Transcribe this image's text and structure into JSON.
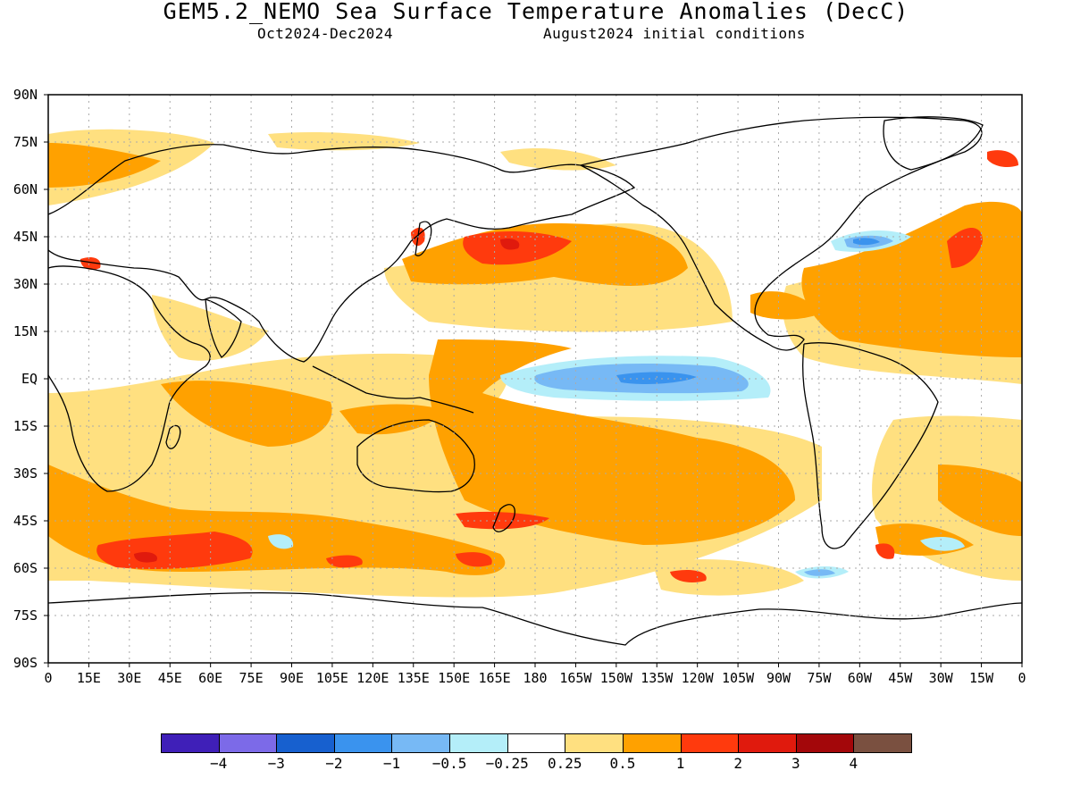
{
  "title": "GEM5.2_NEMO Sea Surface Temperature Anomalies (DecC)",
  "subtitle_left": "Oct2024-Dec2024",
  "subtitle_right": "August2024 initial conditions",
  "lat_labels": [
    "90N",
    "75N",
    "60N",
    "45N",
    "30N",
    "15N",
    "EQ",
    "15S",
    "30S",
    "45S",
    "60S",
    "75S",
    "90S"
  ],
  "lon_labels": [
    "0",
    "15E",
    "30E",
    "45E",
    "60E",
    "75E",
    "90E",
    "105E",
    "120E",
    "135E",
    "150E",
    "165E",
    "180",
    "165W",
    "150W",
    "135W",
    "120W",
    "105W",
    "90W",
    "75W",
    "60W",
    "45W",
    "30W",
    "15W",
    "0"
  ],
  "colorbar": {
    "colors": [
      "#3f1fb8",
      "#7c6ae8",
      "#1760cf",
      "#3a93ee",
      "#77b9f5",
      "#b4eef9",
      "#ffffff",
      "#ffe080",
      "#ffa100",
      "#ff3a0d",
      "#e01a0d",
      "#a3070a",
      "#7a5040"
    ],
    "labels": [
      "-4",
      "-3",
      "-2",
      "-1",
      "-0.5",
      "-0.25",
      "0.25",
      "0.5",
      "1",
      "2",
      "3",
      "4"
    ]
  },
  "colors": {
    "land_outline": "#000000",
    "grid": "#aaaaaa"
  }
}
